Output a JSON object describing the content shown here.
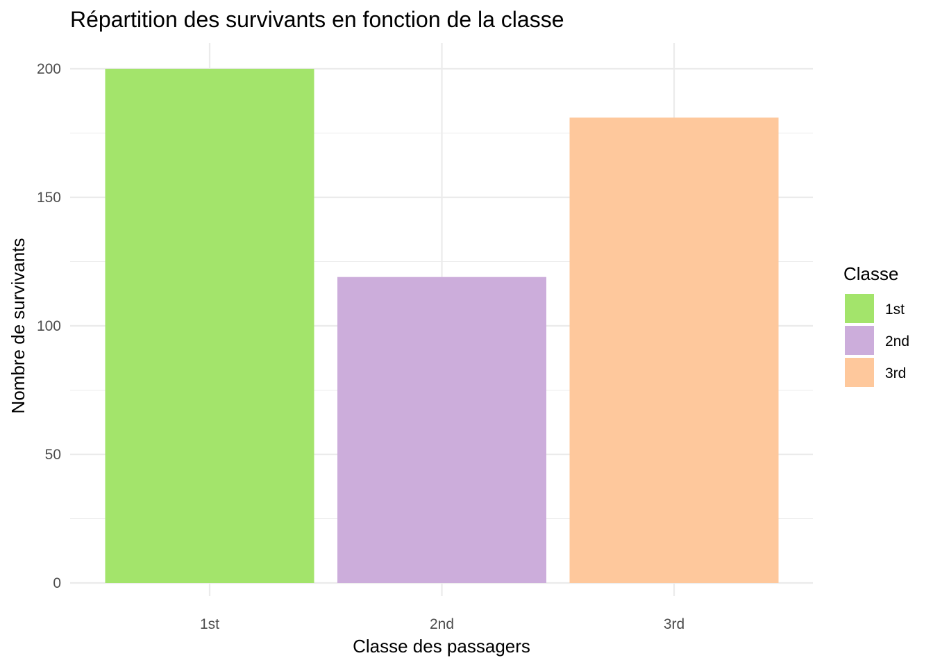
{
  "chart_data": {
    "type": "bar",
    "title": "Répartition des survivants en fonction de la classe",
    "xlabel": "Classe des passagers",
    "ylabel": "Nombre de survivants",
    "categories": [
      "1st",
      "2nd",
      "3rd"
    ],
    "values": [
      200,
      119,
      181
    ],
    "colors": [
      "#a3e46b",
      "#ccaddb",
      "#fec89c"
    ],
    "ylim": [
      0,
      200
    ],
    "yticks": [
      0,
      50,
      100,
      150,
      200
    ],
    "grid": true,
    "legend": {
      "title": "Classe",
      "position": "right",
      "entries": [
        "1st",
        "2nd",
        "3rd"
      ]
    }
  }
}
